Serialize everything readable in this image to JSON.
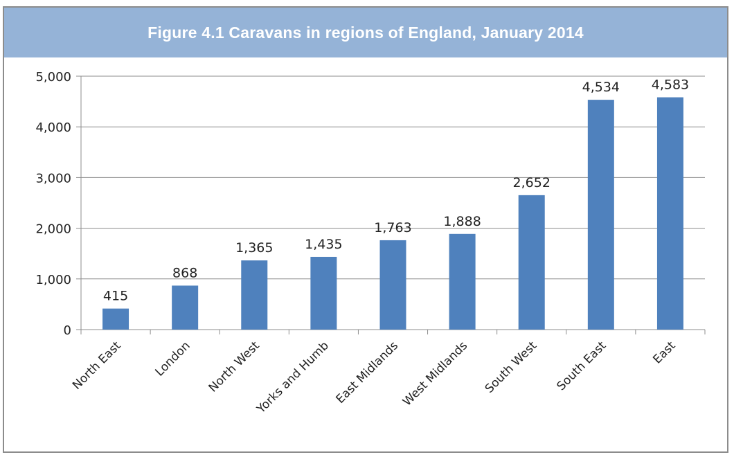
{
  "chart_data": {
    "type": "bar",
    "title": "Figure 4.1 Caravans in regions of England, January 2014",
    "categories": [
      "North East",
      "London",
      "North West",
      "Yorks and Humb",
      "East Midlands",
      "West Midlands",
      "South West",
      "South East",
      "East"
    ],
    "values": [
      415,
      868,
      1365,
      1435,
      1763,
      1888,
      2652,
      4534,
      4583
    ],
    "data_labels": [
      "415",
      "868",
      "1,365",
      "1,435",
      "1,763",
      "1,888",
      "2,652",
      "4,534",
      "4,583"
    ],
    "y_ticks": [
      0,
      1000,
      2000,
      3000,
      4000,
      5000
    ],
    "y_tick_labels": [
      "0",
      "1,000",
      "2,000",
      "3,000",
      "4,000",
      "5,000"
    ],
    "ylim": [
      0,
      5000
    ],
    "xlabel": "",
    "ylabel": "",
    "grid": true,
    "bar_color": "#4f81bd",
    "title_bg_color": "#95b3d7"
  }
}
